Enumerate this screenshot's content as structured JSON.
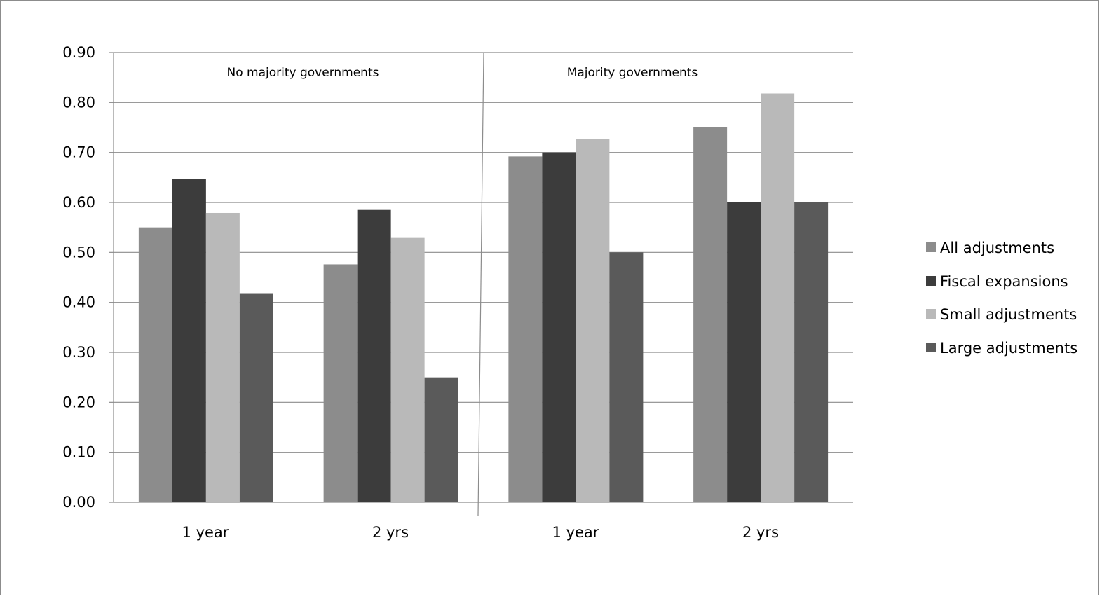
{
  "chart_data": {
    "type": "bar",
    "title": "",
    "xlabel": "",
    "ylabel": "",
    "ylim": [
      0,
      0.9
    ],
    "yticks": [
      "0.00",
      "0.10",
      "0.20",
      "0.30",
      "0.40",
      "0.50",
      "0.60",
      "0.70",
      "0.80",
      "0.90"
    ],
    "grid": true,
    "legend_position": "right",
    "panels": [
      "No majority governments",
      "Majority governments"
    ],
    "categories": [
      "1 year",
      "2 yrs",
      "1 year",
      "2 yrs"
    ],
    "series": [
      {
        "name": "All adjustments",
        "color": "#8c8c8c",
        "values": [
          0.55,
          0.476,
          0.692,
          0.75
        ]
      },
      {
        "name": "Fiscal expansions",
        "color": "#3c3c3c",
        "values": [
          0.647,
          0.585,
          0.7,
          0.6
        ]
      },
      {
        "name": "Small adjustments",
        "color": "#b9b9b9",
        "values": [
          0.579,
          0.529,
          0.727,
          0.818
        ]
      },
      {
        "name": "Large adjustments",
        "color": "#5a5a5a",
        "values": [
          0.417,
          0.25,
          0.5,
          0.6
        ]
      }
    ]
  }
}
